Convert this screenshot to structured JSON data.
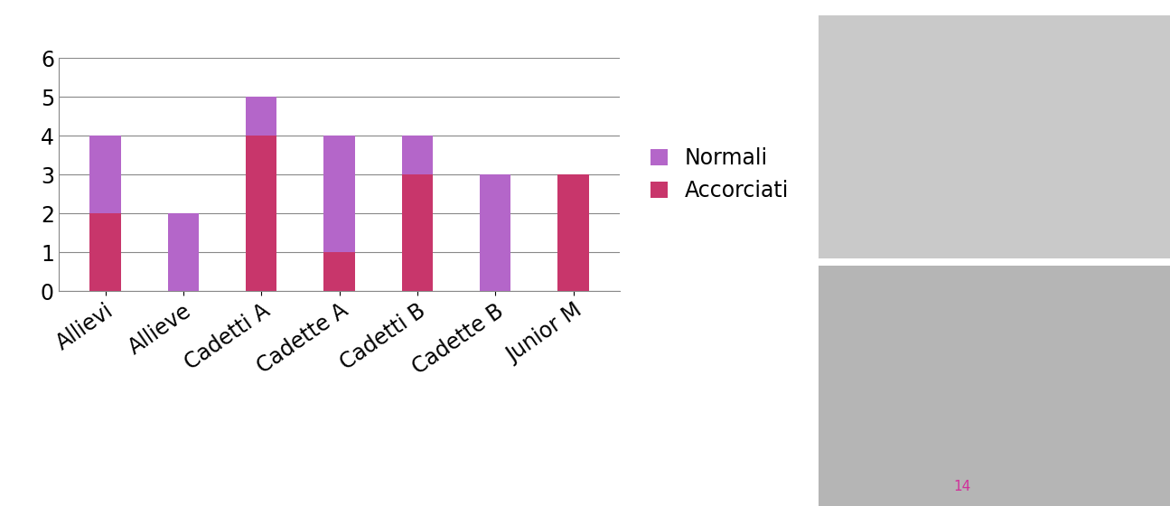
{
  "chart_data": {
    "type": "bar",
    "stacked": true,
    "categories": [
      "Allievi",
      "Allieve",
      "Cadetti A",
      "Cadette A",
      "Cadetti B",
      "Cadette B",
      "Junior M"
    ],
    "series": [
      {
        "name": "Accorciati",
        "color": "#c8366b",
        "values": [
          2,
          0,
          4,
          1,
          3,
          0,
          3
        ]
      },
      {
        "name": "Normali",
        "color": "#b466c9",
        "values": [
          2,
          2,
          1,
          3,
          1,
          3,
          0
        ]
      }
    ],
    "ylim": [
      0,
      6
    ],
    "yticks": [
      0,
      1,
      2,
      3,
      4,
      5,
      6
    ],
    "grid": true,
    "legend": "center left"
  },
  "page_number": "14"
}
